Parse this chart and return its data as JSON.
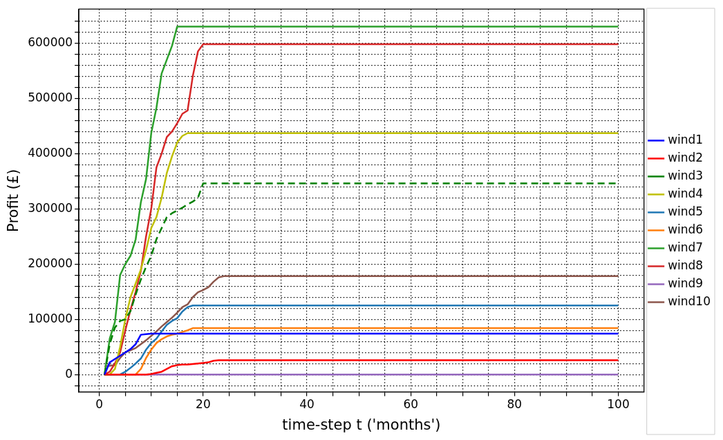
{
  "chart_data": {
    "type": "line",
    "xlabel": "time-step t ('months')",
    "ylabel": "Profit (£)",
    "xlim": [
      -3.95,
      104.95
    ],
    "ylim": [
      -31500,
      661500
    ],
    "xticks": [
      0,
      {
        "value": 5,
        "label": null
      },
      {
        "value": 10,
        "label": null
      },
      {
        "value": 15,
        "label": null
      },
      20,
      {
        "value": 25,
        "label": null
      },
      {
        "value": 30,
        "label": null
      },
      {
        "value": 35,
        "label": null
      },
      40,
      {
        "value": 45,
        "label": null
      },
      {
        "value": 50,
        "label": null
      },
      {
        "value": 55,
        "label": null
      },
      60,
      {
        "value": 65,
        "label": null
      },
      {
        "value": 70,
        "label": null
      },
      {
        "value": 75,
        "label": null
      },
      80,
      {
        "value": 85,
        "label": null
      },
      {
        "value": 90,
        "label": null
      },
      {
        "value": 95,
        "label": null
      },
      100
    ],
    "yticks": [
      {
        "value": -20000,
        "label": null
      },
      0,
      {
        "value": 20000,
        "label": null
      },
      {
        "value": 40000,
        "label": null
      },
      {
        "value": 60000,
        "label": null
      },
      {
        "value": 80000,
        "label": null
      },
      100000,
      {
        "value": 120000,
        "label": null
      },
      {
        "value": 140000,
        "label": null
      },
      {
        "value": 160000,
        "label": null
      },
      {
        "value": 180000,
        "label": null
      },
      200000,
      {
        "value": 220000,
        "label": null
      },
      {
        "value": 240000,
        "label": null
      },
      {
        "value": 260000,
        "label": null
      },
      {
        "value": 280000,
        "label": null
      },
      300000,
      {
        "value": 320000,
        "label": null
      },
      {
        "value": 340000,
        "label": null
      },
      {
        "value": 360000,
        "label": null
      },
      {
        "value": 380000,
        "label": null
      },
      400000,
      {
        "value": 420000,
        "label": null
      },
      {
        "value": 440000,
        "label": null
      },
      {
        "value": 460000,
        "label": null
      },
      {
        "value": 480000,
        "label": null
      },
      500000,
      {
        "value": 520000,
        "label": null
      },
      {
        "value": 540000,
        "label": null
      },
      {
        "value": 560000,
        "label": null
      },
      {
        "value": 580000,
        "label": null
      },
      600000,
      {
        "value": 620000,
        "label": null
      },
      {
        "value": 640000,
        "label": null
      }
    ],
    "grid": true,
    "legend": "right",
    "marker": "none",
    "line_style": "solid",
    "series": [
      {
        "name": "wind1",
        "color": "#0000ff",
        "x": [
          1,
          2,
          3,
          4,
          5,
          6,
          7,
          8,
          9,
          10,
          100
        ],
        "values": [
          0,
          22000,
          28000,
          34000,
          40000,
          46000,
          55000,
          72000,
          73000,
          74000,
          74000
        ]
      },
      {
        "name": "wind2",
        "color": "#ff0000",
        "x": [
          1,
          9,
          10,
          11,
          12,
          13,
          14,
          15,
          16,
          17,
          18,
          19,
          20,
          21,
          22,
          23,
          25,
          100
        ],
        "values": [
          0,
          0,
          1000,
          3000,
          5000,
          10000,
          15000,
          17000,
          18000,
          18000,
          19000,
          20000,
          21000,
          22000,
          25000,
          26000,
          26000,
          26000
        ]
      },
      {
        "name": "wind3",
        "color": "#008000",
        "line_style": "dashed",
        "x": [
          1,
          2,
          3,
          4,
          5,
          6,
          7,
          8,
          9,
          10,
          11,
          12,
          13,
          14,
          15,
          16,
          17,
          18,
          19,
          20,
          100
        ],
        "values": [
          0,
          55000,
          85000,
          97000,
          100000,
          115000,
          145000,
          172000,
          195000,
          215000,
          245000,
          265000,
          285000,
          292000,
          297000,
          302000,
          308000,
          313000,
          320000,
          346000,
          346000
        ]
      },
      {
        "name": "wind4",
        "color": "#bfbf00",
        "x": [
          1,
          2,
          3,
          4,
          5,
          6,
          7,
          8,
          9,
          10,
          11,
          12,
          13,
          14,
          15,
          16,
          17,
          100
        ],
        "values": [
          0,
          0,
          10000,
          50000,
          100000,
          140000,
          165000,
          190000,
          225000,
          265000,
          285000,
          320000,
          365000,
          395000,
          420000,
          432000,
          437000,
          437000
        ]
      },
      {
        "name": "wind5",
        "color": "#1f77b4",
        "x": [
          1,
          4,
          5,
          6,
          7,
          8,
          9,
          10,
          11,
          12,
          13,
          14,
          15,
          16,
          17,
          18,
          100
        ],
        "values": [
          0,
          0,
          5000,
          12000,
          20000,
          29000,
          45000,
          57000,
          65000,
          78000,
          90000,
          97000,
          102000,
          114000,
          122000,
          125000,
          125000
        ]
      },
      {
        "name": "wind6",
        "color": "#ff7f0e",
        "x": [
          1,
          7,
          8,
          9,
          10,
          11,
          12,
          13,
          14,
          15,
          16,
          17,
          18,
          100
        ],
        "values": [
          0,
          0,
          10000,
          30000,
          45000,
          57000,
          64000,
          69000,
          72000,
          74000,
          77000,
          80000,
          84000,
          84000
        ]
      },
      {
        "name": "wind7",
        "color": "#2ca02c",
        "x": [
          1,
          2,
          3,
          4,
          5,
          6,
          7,
          8,
          9,
          10,
          11,
          12,
          13,
          14,
          15,
          100
        ],
        "values": [
          0,
          65000,
          95000,
          180000,
          200000,
          215000,
          245000,
          312000,
          354000,
          437000,
          483000,
          545000,
          570000,
          595000,
          630000,
          630000
        ]
      },
      {
        "name": "wind8",
        "color": "#d62728",
        "x": [
          1,
          2,
          3,
          4,
          5,
          6,
          7,
          8,
          9,
          10,
          11,
          12,
          13,
          14,
          15,
          16,
          17,
          18,
          19,
          20,
          100
        ],
        "values": [
          0,
          5000,
          20000,
          40000,
          80000,
          117000,
          150000,
          188000,
          250000,
          300000,
          375000,
          400000,
          430000,
          440000,
          455000,
          472000,
          478000,
          540000,
          585000,
          598000,
          598000
        ]
      },
      {
        "name": "wind9",
        "color": "#9467bd",
        "x": [
          1,
          100
        ],
        "values": [
          0,
          0
        ]
      },
      {
        "name": "wind10",
        "color": "#8c564b",
        "x": [
          1,
          2,
          3,
          4,
          5,
          6,
          7,
          8,
          9,
          10,
          11,
          12,
          13,
          14,
          15,
          16,
          17,
          18,
          19,
          20,
          21,
          22,
          23,
          24,
          100
        ],
        "values": [
          15000,
          16000,
          17000,
          30000,
          40000,
          44000,
          48000,
          55000,
          62000,
          70000,
          78000,
          87000,
          95000,
          103000,
          112000,
          122000,
          127000,
          140000,
          149000,
          153000,
          158000,
          168000,
          176000,
          178000,
          178000
        ]
      }
    ]
  }
}
